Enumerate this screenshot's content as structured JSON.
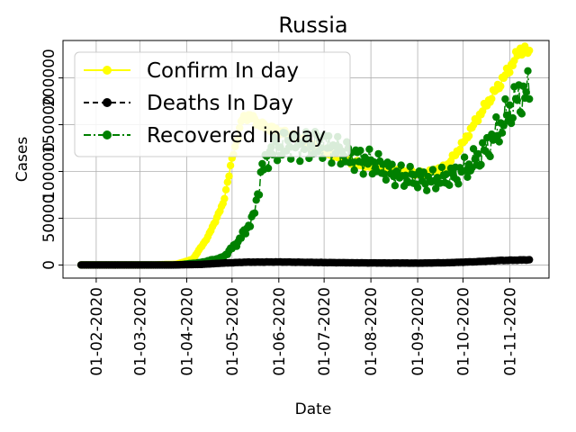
{
  "chart_data": {
    "type": "line",
    "title": "Russia",
    "xlabel": "Date",
    "ylabel": "Cases",
    "x_start": "2020-01-22",
    "x_end": "2020-11-14",
    "xlim": [
      "2020-01-10",
      "2020-11-27"
    ],
    "ylim": [
      -14000,
      240000
    ],
    "grid": true,
    "legend_position": "upper-left",
    "x_ticks": [
      "01-02-2020",
      "01-03-2020",
      "01-04-2020",
      "01-05-2020",
      "01-06-2020",
      "01-07-2020",
      "01-08-2020",
      "01-09-2020",
      "01-10-2020",
      "01-11-2020"
    ],
    "y_tick_values": [
      0,
      50000,
      100000,
      150000,
      200000
    ],
    "y_tick_labels": [
      "0",
      "50000",
      "100000",
      "150000",
      "200000"
    ],
    "series": [
      {
        "name": "Confirm In day",
        "color": "#ffff00",
        "line_style": "solid",
        "keypoints": [
          [
            "2020-01-22",
            0
          ],
          [
            "2020-03-10",
            50
          ],
          [
            "2020-03-25",
            700
          ],
          [
            "2020-04-05",
            6000
          ],
          [
            "2020-04-15",
            30000
          ],
          [
            "2020-04-25",
            65000
          ],
          [
            "2020-05-02",
            120000
          ],
          [
            "2020-05-08",
            157000
          ],
          [
            "2020-05-12",
            160000
          ],
          [
            "2020-05-20",
            150000
          ],
          [
            "2020-06-01",
            143000
          ],
          [
            "2020-06-15",
            135000
          ],
          [
            "2020-07-01",
            122000
          ],
          [
            "2020-07-15",
            112000
          ],
          [
            "2020-08-01",
            105000
          ],
          [
            "2020-08-20",
            100000
          ],
          [
            "2020-09-05",
            97000
          ],
          [
            "2020-09-20",
            105000
          ],
          [
            "2020-10-01",
            130000
          ],
          [
            "2020-10-10",
            155000
          ],
          [
            "2020-10-20",
            180000
          ],
          [
            "2020-11-01",
            210000
          ],
          [
            "2020-11-08",
            230000
          ],
          [
            "2020-11-14",
            226000
          ]
        ]
      },
      {
        "name": "Deaths In Day",
        "color": "#000000",
        "line_style": "dashed",
        "keypoints": [
          [
            "2020-01-22",
            0
          ],
          [
            "2020-03-20",
            0
          ],
          [
            "2020-04-10",
            600
          ],
          [
            "2020-04-25",
            2000
          ],
          [
            "2020-05-10",
            3000
          ],
          [
            "2020-06-01",
            3200
          ],
          [
            "2020-07-01",
            2600
          ],
          [
            "2020-08-01",
            2200
          ],
          [
            "2020-09-01",
            2000
          ],
          [
            "2020-09-20",
            2400
          ],
          [
            "2020-10-10",
            3500
          ],
          [
            "2020-10-25",
            4800
          ],
          [
            "2020-11-14",
            5500
          ]
        ]
      },
      {
        "name": "Recovered in day",
        "color": "#008000",
        "line_style": "dashdot",
        "keypoints": [
          [
            "2020-01-22",
            0
          ],
          [
            "2020-03-25",
            0
          ],
          [
            "2020-04-10",
            2500
          ],
          [
            "2020-04-25",
            8000
          ],
          [
            "2020-05-05",
            25000
          ],
          [
            "2020-05-15",
            50000
          ],
          [
            "2020-05-20",
            95000
          ],
          [
            "2020-05-25",
            120000
          ],
          [
            "2020-06-05",
            130000
          ],
          [
            "2020-06-20",
            128000
          ],
          [
            "2020-07-01",
            130000
          ],
          [
            "2020-07-20",
            115000
          ],
          [
            "2020-08-01",
            110000
          ],
          [
            "2020-08-20",
            95000
          ],
          [
            "2020-09-10",
            90000
          ],
          [
            "2020-09-25",
            95000
          ],
          [
            "2020-10-05",
            105000
          ],
          [
            "2020-10-15",
            120000
          ],
          [
            "2020-10-25",
            145000
          ],
          [
            "2020-11-05",
            175000
          ],
          [
            "2020-11-14",
            185000
          ]
        ]
      }
    ]
  }
}
